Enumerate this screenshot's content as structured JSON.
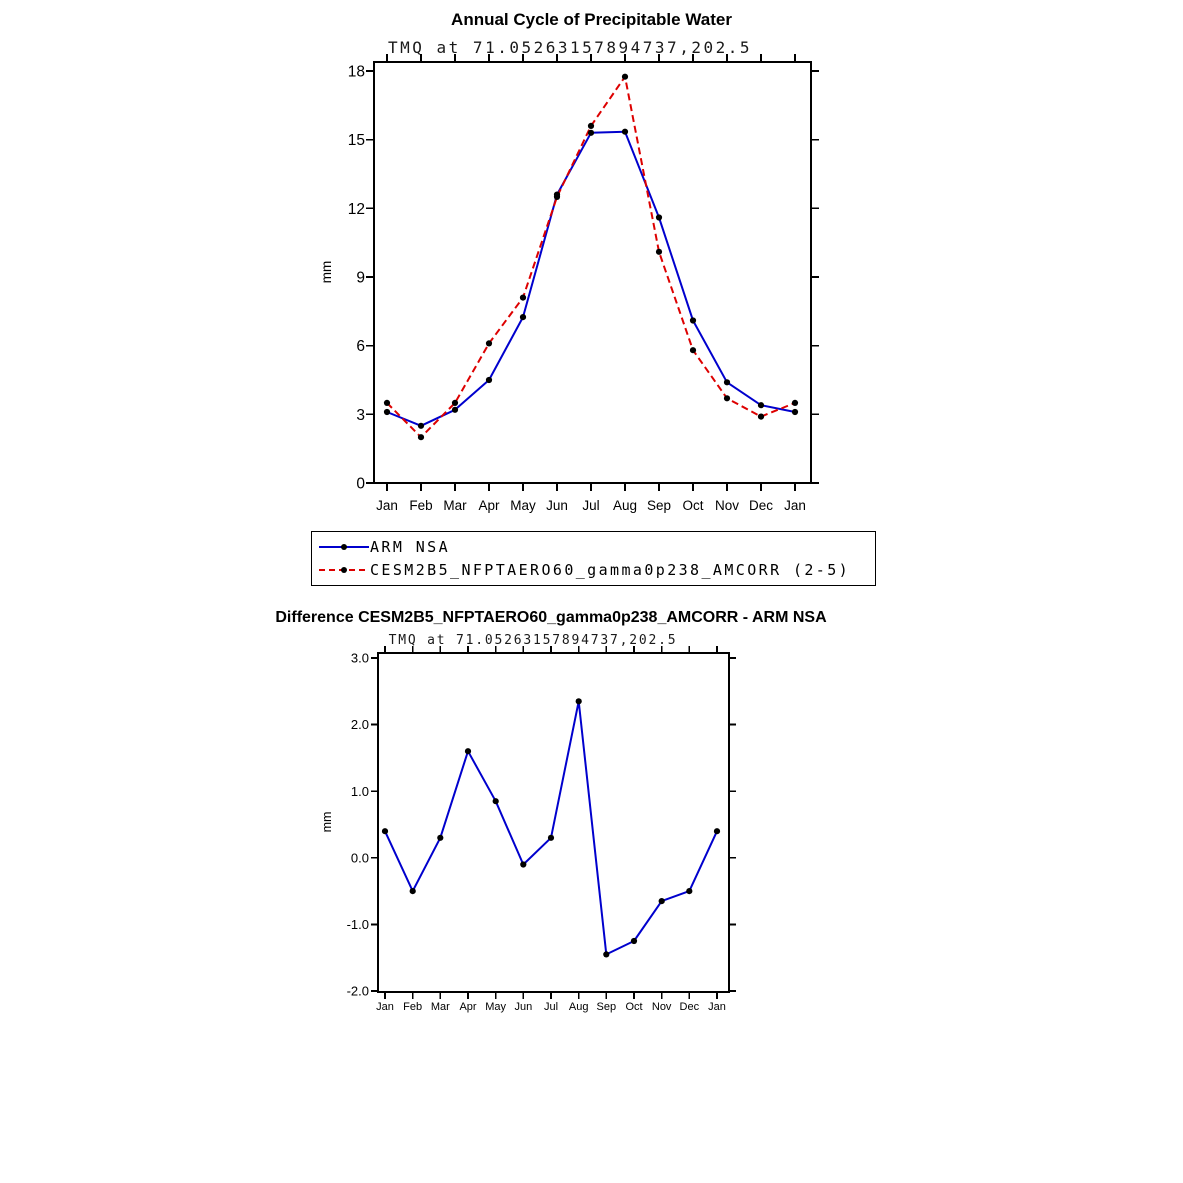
{
  "figure": {
    "background": "#ffffff"
  },
  "chart_data": [
    {
      "type": "line",
      "title": "Annual Cycle of Precipitable Water",
      "subtitle": "TMQ at 71.05263157894737,202.5",
      "ylabel": "mm",
      "ylim": [
        0,
        18
      ],
      "ytick_values": [
        0,
        3,
        6,
        9,
        12,
        15,
        18
      ],
      "ytick_labels": [
        "0",
        "3",
        "6",
        "9",
        "12",
        "15",
        "18"
      ],
      "categories": [
        "Jan",
        "Feb",
        "Mar",
        "Apr",
        "May",
        "Jun",
        "Jul",
        "Aug",
        "Sep",
        "Oct",
        "Nov",
        "Dec",
        "Jan"
      ],
      "grid": false,
      "legend_position": "boxed-below-plot",
      "series": [
        {
          "name": "ARM NSA",
          "color": "#0000cd",
          "style": "solid",
          "dash": "none",
          "marker": "black-dot",
          "values": [
            3.1,
            2.5,
            3.2,
            4.5,
            7.25,
            12.6,
            15.3,
            15.35,
            11.6,
            7.1,
            4.4,
            3.4,
            3.1
          ]
        },
        {
          "name": "CESM2B5_NFPTAERO60_gamma0p238_AMCORR (2-5)",
          "color": "#dd0000",
          "style": "dashed",
          "dash": "6,4",
          "marker": "black-dot",
          "values": [
            3.5,
            2.0,
            3.5,
            6.1,
            8.1,
            12.5,
            15.6,
            17.75,
            10.1,
            5.8,
            3.7,
            2.9,
            3.5
          ]
        }
      ]
    },
    {
      "type": "line",
      "title": "Difference CESM2B5_NFPTAERO60_gamma0p238_AMCORR - ARM NSA",
      "subtitle": "TMQ at 71.05263157894737,202.5",
      "ylabel": "mm",
      "ylim": [
        -2.0,
        3.0
      ],
      "ytick_values": [
        -2.0,
        -1.0,
        0.0,
        1.0,
        2.0,
        3.0
      ],
      "ytick_labels": [
        "-2.0",
        "-1.0",
        "0.0",
        "1.0",
        "2.0",
        "3.0"
      ],
      "categories": [
        "Jan",
        "Feb",
        "Mar",
        "Apr",
        "May",
        "Jun",
        "Jul",
        "Aug",
        "Sep",
        "Oct",
        "Nov",
        "Dec",
        "Jan"
      ],
      "grid": false,
      "series": [
        {
          "color": "#0000cd",
          "style": "solid",
          "dash": "none",
          "marker": "black-dot",
          "values": [
            0.4,
            -0.5,
            0.3,
            1.6,
            0.85,
            -0.1,
            0.3,
            2.35,
            -1.45,
            -1.25,
            -0.65,
            -0.5,
            0.4
          ]
        }
      ]
    }
  ]
}
